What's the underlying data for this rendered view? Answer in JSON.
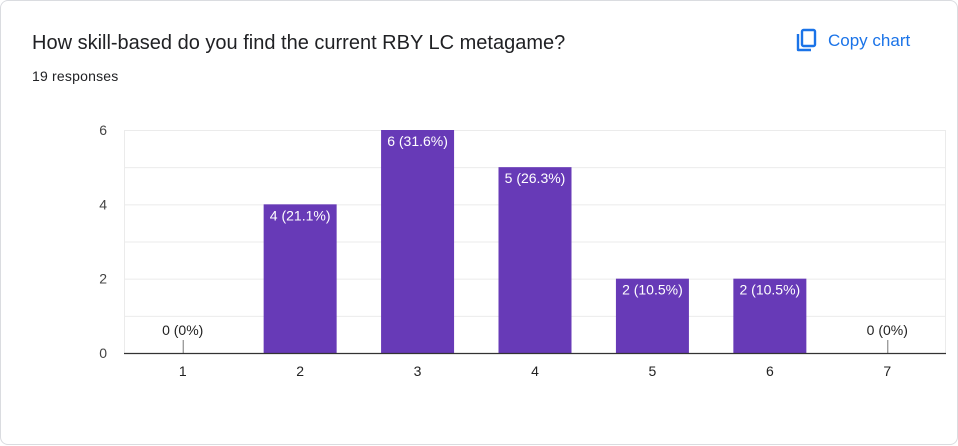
{
  "header": {
    "title": "How skill-based do you find the current RBY LC metagame?",
    "responses": "19 responses",
    "copy_label": "Copy chart",
    "copy_icon": "copy-icon"
  },
  "colors": {
    "bar": "#673ab7",
    "grid": "#ebebeb",
    "axis": "#333333",
    "accent": "#1a73e8"
  },
  "chart_data": {
    "type": "bar",
    "categories": [
      "1",
      "2",
      "3",
      "4",
      "5",
      "6",
      "7"
    ],
    "values": [
      0,
      4,
      6,
      5,
      2,
      2,
      0
    ],
    "data_labels": [
      "0 (0%)",
      "4 (21.1%)",
      "6 (31.6%)",
      "5 (26.3%)",
      "2 (10.5%)",
      "2 (10.5%)",
      "0 (0%)"
    ],
    "y_ticks": [
      0,
      2,
      4,
      6
    ],
    "ylim": [
      0,
      6
    ],
    "grid": true,
    "legend": "none",
    "title": "How skill-based do you find the current RBY LC metagame?",
    "xlabel": "",
    "ylabel": ""
  }
}
